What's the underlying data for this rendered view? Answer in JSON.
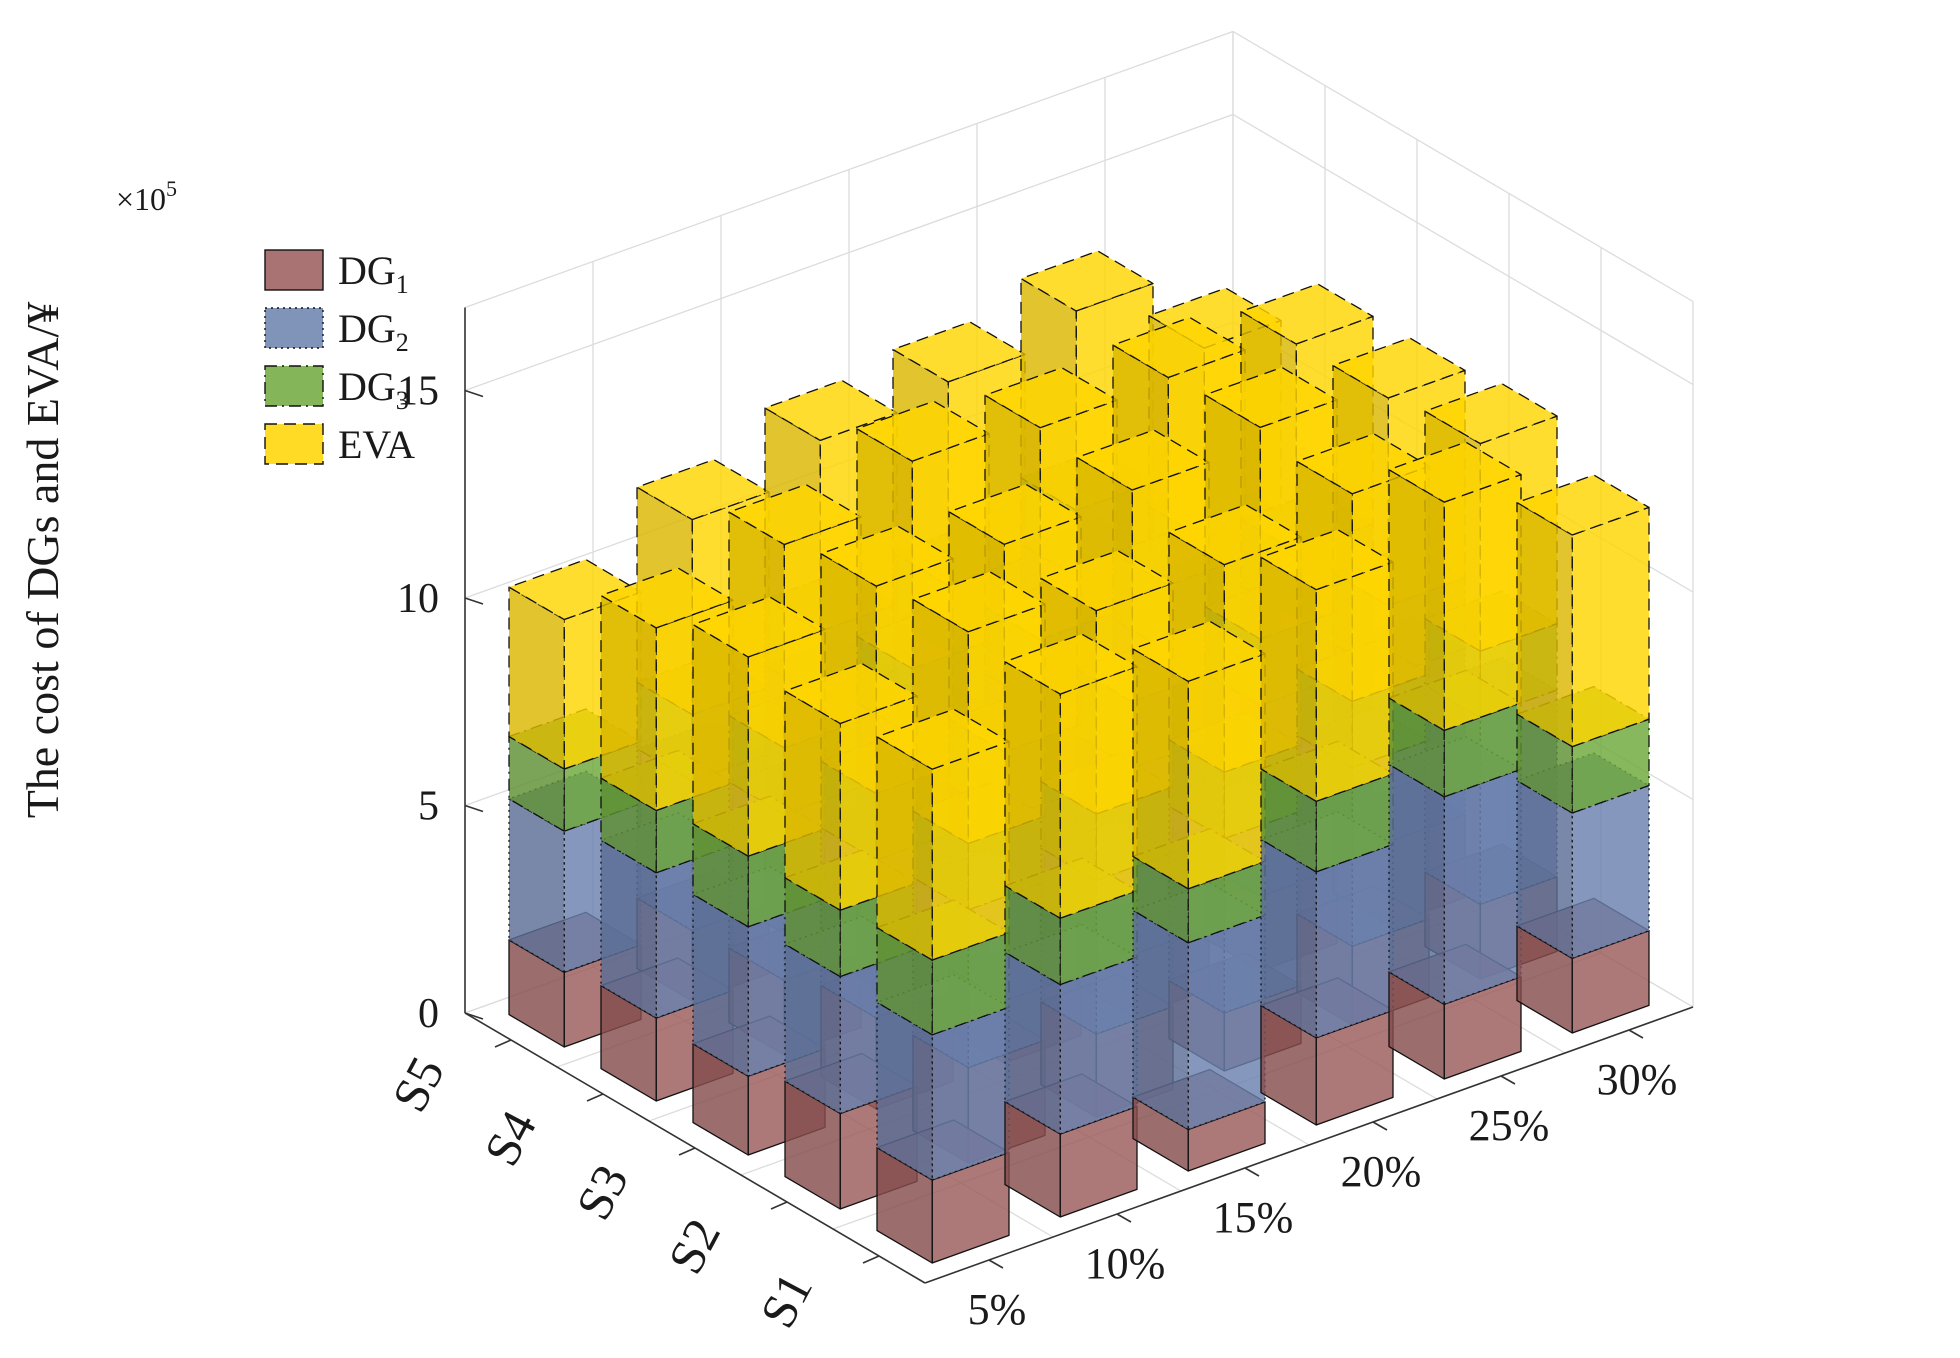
{
  "chart_data": {
    "type": "bar3d-stacked",
    "title": "",
    "ylabel": "The cost of DGs and EVA/¥",
    "scale_label": "×10",
    "scale_exponent": "5",
    "zlim": [
      0,
      17
    ],
    "z_ticks": [
      0,
      5,
      10,
      15
    ],
    "z_tick_labels": [
      "0",
      "5",
      "10",
      "15"
    ],
    "rows": [
      "S1",
      "S2",
      "S3",
      "S4",
      "S5"
    ],
    "columns": [
      "5%",
      "10%",
      "15%",
      "20%",
      "25%",
      "30%"
    ],
    "legend": [
      {
        "name": "DG",
        "sub": "1",
        "color": "#9b5a5a",
        "stroke": "solid"
      },
      {
        "name": "DG",
        "sub": "2",
        "color": "#6a80ad",
        "stroke": "dotted"
      },
      {
        "name": "DG",
        "sub": "3",
        "color": "#6ea83b",
        "stroke": "dashdot"
      },
      {
        "name": "EVA",
        "sub": "",
        "color": "#ffd500",
        "stroke": "dashed"
      }
    ],
    "series": [
      {
        "name": "DG1",
        "values": [
          [
            2.0,
            2.0,
            1.0,
            2.1,
            1.8,
            1.8
          ],
          [
            2.3,
            2.3,
            2.0,
            1.4,
            1.9,
            1.8
          ],
          [
            1.9,
            2.2,
            1.5,
            1.5,
            1.8,
            2.0
          ],
          [
            2.0,
            1.8,
            2.3,
            1.9,
            2.0,
            1.8
          ],
          [
            1.8,
            1.7,
            2.2,
            2.0,
            2.3,
            1.8
          ]
        ]
      },
      {
        "name": "DG2",
        "values": [
          [
            3.5,
            3.6,
            4.5,
            4.0,
            5.0,
            3.5
          ],
          [
            3.3,
            3.8,
            3.7,
            4.2,
            4.3,
            4.5
          ],
          [
            3.6,
            3.8,
            4.4,
            4.5,
            4.6,
            4.0
          ],
          [
            3.5,
            4.0,
            4.3,
            4.3,
            4.4,
            4.3
          ],
          [
            3.4,
            3.6,
            4.0,
            4.2,
            4.6,
            3.3
          ]
        ]
      },
      {
        "name": "DG3",
        "values": [
          [
            1.8,
            1.6,
            1.3,
            1.7,
            1.6,
            1.6
          ],
          [
            1.6,
            1.6,
            1.6,
            1.6,
            1.6,
            1.6
          ],
          [
            1.7,
            1.6,
            1.6,
            1.6,
            1.6,
            1.7
          ],
          [
            1.5,
            1.6,
            1.6,
            1.6,
            1.6,
            1.6
          ],
          [
            1.5,
            1.6,
            1.6,
            1.6,
            1.6,
            1.6
          ]
        ]
      },
      {
        "name": "EVA",
        "values": [
          [
            4.6,
            5.4,
            5.0,
            5.1,
            5.5,
            5.1
          ],
          [
            4.5,
            5.1,
            4.9,
            5.0,
            5.0,
            5.0
          ],
          [
            4.8,
            5.0,
            5.0,
            5.1,
            5.1,
            5.0
          ],
          [
            4.4,
            4.9,
            5.0,
            5.1,
            5.0,
            5.0
          ],
          [
            3.6,
            4.7,
            4.6,
            4.9,
            4.8,
            4.6
          ]
        ]
      }
    ]
  }
}
